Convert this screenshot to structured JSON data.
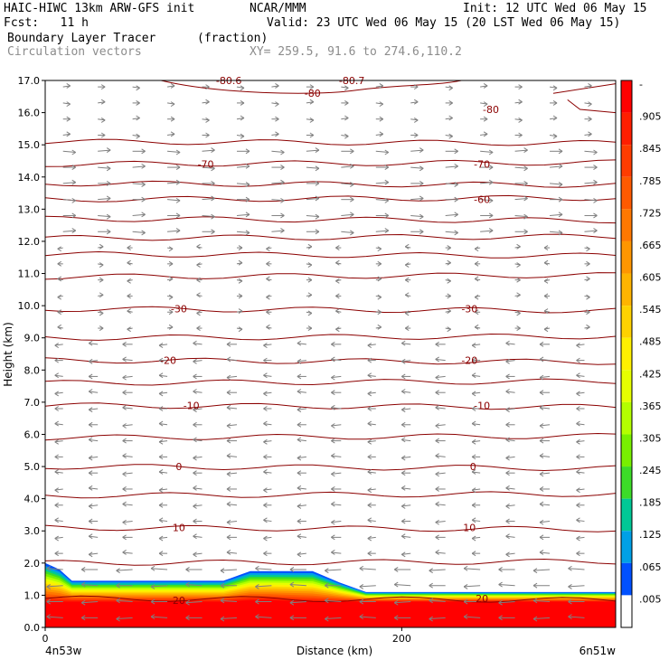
{
  "header": {
    "model": "HAIC-HIWC 13km ARW-GFS init",
    "org": "NCAR/MMM",
    "init": "Init: 12 UTC Wed 06 May 15",
    "fcst": "Fcst:   11 h",
    "valid": "Valid: 23 UTC Wed 06 May 15 (20 LST Wed 06 May 15)",
    "field": "Boundary Layer Tracer",
    "units": "(fraction)",
    "vectors": "Circulation vectors",
    "xy": "XY= 259.5, 91.6 to 274.6,110.2"
  },
  "chart_data": {
    "type": "heatmap",
    "title": "Boundary Layer Tracer",
    "ylabel": "Height (km)",
    "xlabel": "Distance (km)",
    "x_left_label": "4n53w",
    "x_right_label": "6n51w",
    "xlim": [
      0,
      320
    ],
    "ylim": [
      0,
      17
    ],
    "x_ticks": [
      0,
      200
    ],
    "y_ticks": [
      "0.0",
      "1.0",
      "2.0",
      "3.0",
      "4.0",
      "5.0",
      "6.0",
      "7.0",
      "8.0",
      "9.0",
      "10.0",
      "11.0",
      "12.0",
      "13.0",
      "14.0",
      "15.0",
      "16.0",
      "17.0"
    ],
    "colorbar": {
      "labels": [
        "-",
        ".905",
        ".845",
        ".785",
        ".725",
        ".665",
        ".605",
        ".545",
        ".485",
        ".425",
        ".365",
        ".305",
        ".245",
        ".185",
        ".125",
        ".065",
        ".005"
      ],
      "colors": [
        "#ff0000",
        "#ff1e00",
        "#ff3c00",
        "#ff5a00",
        "#ff7800",
        "#ff9600",
        "#ffb400",
        "#ffd200",
        "#fff000",
        "#e6ff00",
        "#b4ff00",
        "#78f000",
        "#3cdc28",
        "#00c896",
        "#00a0e6",
        "#0050ff",
        "#ffffff"
      ]
    },
    "tracer_top": {
      "x": [
        0,
        8,
        15,
        30,
        60,
        100,
        115,
        125,
        150,
        165,
        180,
        200,
        230,
        260,
        290,
        320
      ],
      "blue_top_km": [
        2.0,
        1.8,
        1.45,
        1.45,
        1.45,
        1.45,
        1.75,
        1.75,
        1.75,
        1.4,
        1.1,
        1.1,
        1.1,
        1.1,
        1.1,
        1.1
      ],
      "red_top_km": [
        0.8,
        0.8,
        0.8,
        0.8,
        0.8,
        0.8,
        0.85,
        0.85,
        0.8,
        0.8,
        0.8,
        0.8,
        0.8,
        0.8,
        0.8,
        0.8
      ]
    },
    "contours": {
      "levels_km": [
        0.9,
        2.0,
        3.1,
        4.1,
        5.0,
        5.9,
        6.9,
        7.6,
        8.3,
        9.0,
        9.9,
        10.9,
        11.6,
        12.1,
        12.7,
        13.3,
        13.8,
        14.4,
        15.1
      ],
      "labels": [
        {
          "text": "20",
          "x": 75,
          "y_km": 0.85
        },
        {
          "text": "20",
          "x": 245,
          "y_km": 0.9
        },
        {
          "text": "10",
          "x": 75,
          "y_km": 3.1
        },
        {
          "text": "10",
          "x": 238,
          "y_km": 3.1
        },
        {
          "text": "0",
          "x": 75,
          "y_km": 5.0
        },
        {
          "text": "0",
          "x": 240,
          "y_km": 5.0
        },
        {
          "text": "-10",
          "x": 82,
          "y_km": 6.9
        },
        {
          "text": "-10",
          "x": 245,
          "y_km": 6.9
        },
        {
          "text": "-20",
          "x": 69,
          "y_km": 8.3
        },
        {
          "text": "-20",
          "x": 238,
          "y_km": 8.3
        },
        {
          "text": "-30",
          "x": 75,
          "y_km": 9.9
        },
        {
          "text": "-30",
          "x": 238,
          "y_km": 9.9
        },
        {
          "text": "-60",
          "x": 245,
          "y_km": 13.3
        },
        {
          "text": "-70",
          "x": 90,
          "y_km": 14.4
        },
        {
          "text": "-70",
          "x": 245,
          "y_km": 14.4
        },
        {
          "text": "-80",
          "x": 150,
          "y_km": 16.6
        },
        {
          "text": "-80",
          "x": 250,
          "y_km": 16.1
        },
        {
          "text": "-80.6",
          "x": 103,
          "y_km": 17.0
        },
        {
          "text": "-80.7",
          "x": 172,
          "y_km": 17.0
        }
      ]
    }
  }
}
